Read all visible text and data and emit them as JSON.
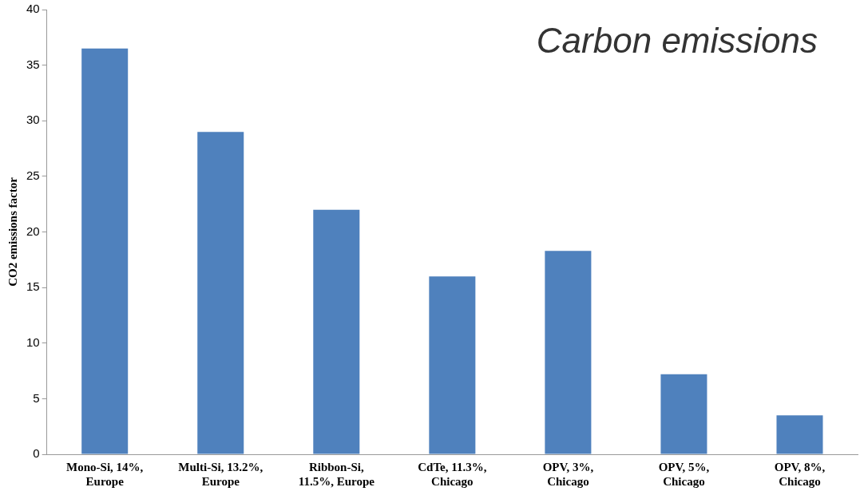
{
  "chart_data": {
    "type": "bar",
    "title": "Carbon emissions",
    "ylabel": "CO2 emissions factor",
    "categories": [
      "Mono-Si, 14%,\nEurope",
      "Multi-Si, 13.2%,\nEurope",
      "Ribbon-Si,\n11.5%, Europe",
      "CdTe, 11.3%,\nChicago",
      "OPV, 3%,\nChicago",
      "OPV, 5%,\nChicago",
      "OPV, 8%,\nChicago"
    ],
    "values": [
      36.5,
      29.0,
      22.0,
      16.0,
      18.3,
      7.2,
      3.5
    ],
    "color": "#4f81bd",
    "ylim": [
      0,
      40
    ],
    "yticks": [
      0,
      5,
      10,
      15,
      20,
      25,
      30,
      35,
      40
    ],
    "grid": false,
    "legend": false
  }
}
